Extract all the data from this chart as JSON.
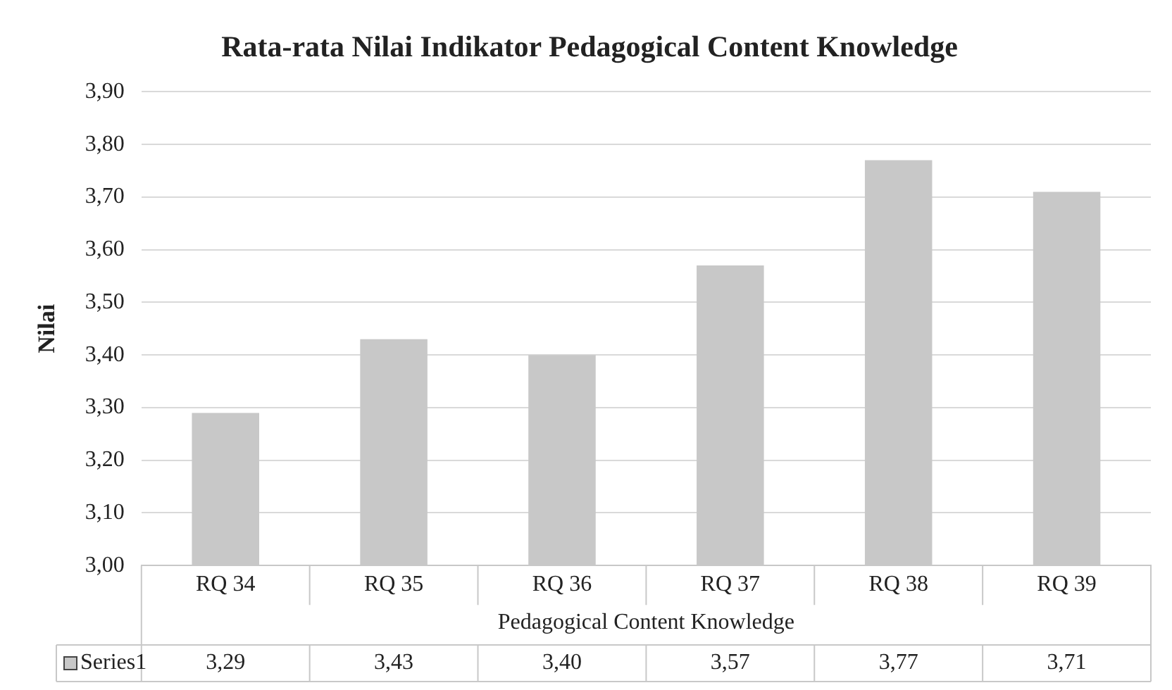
{
  "chart_data": {
    "type": "bar",
    "title": "Rata-rata Nilai Indikator Pedagogical Content Knowledge",
    "xlabel": "Pedagogical Content Knowledge",
    "ylabel": "Nilai",
    "categories": [
      "RQ 34",
      "RQ 35",
      "RQ 36",
      "RQ 37",
      "RQ 38",
      "RQ 39"
    ],
    "series": [
      {
        "name": "Series1",
        "color": "#c8c8c8",
        "values": [
          3.29,
          3.43,
          3.4,
          3.57,
          3.77,
          3.71
        ],
        "value_labels": [
          "3,29",
          "3,43",
          "3,40",
          "3,57",
          "3,77",
          "3,71"
        ]
      }
    ],
    "ylim": [
      3.0,
      3.9
    ],
    "yticks": [
      {
        "value": 3.0,
        "label": "3,00"
      },
      {
        "value": 3.1,
        "label": "3,10"
      },
      {
        "value": 3.2,
        "label": "3,20"
      },
      {
        "value": 3.3,
        "label": "3,30"
      },
      {
        "value": 3.4,
        "label": "3,40"
      },
      {
        "value": 3.5,
        "label": "3,50"
      },
      {
        "value": 3.6,
        "label": "3,60"
      },
      {
        "value": 3.7,
        "label": "3,70"
      },
      {
        "value": 3.8,
        "label": "3,80"
      },
      {
        "value": 3.9,
        "label": "3,90"
      }
    ],
    "grid": "y",
    "legend": "bottom left"
  }
}
